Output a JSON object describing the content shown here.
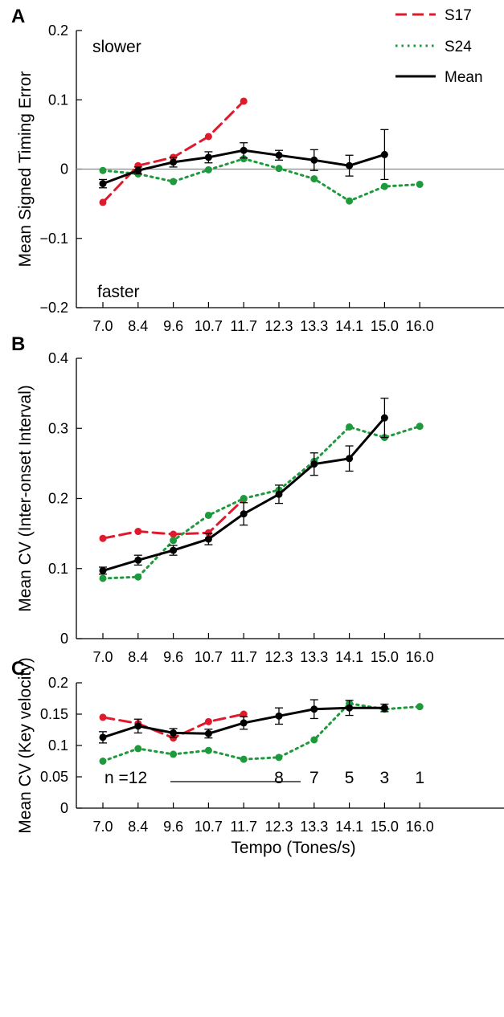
{
  "colors": {
    "S17": "#e0192d",
    "S24": "#1e9a3c",
    "Mean": "#000000",
    "zero_line": "#888888"
  },
  "legend": {
    "placement": "top-right",
    "entries": [
      {
        "key": "S17",
        "label": "S17",
        "style": "dashed"
      },
      {
        "key": "S24",
        "label": "S24",
        "style": "dotted"
      },
      {
        "key": "Mean",
        "label": "Mean",
        "style": "solid"
      }
    ]
  },
  "chart_data": [
    {
      "id": "A",
      "type": "line",
      "panel_label": "A",
      "ylabel": "Mean Signed Timing Error",
      "xlabel": "",
      "ylim": [
        -0.2,
        0.2
      ],
      "yticks": [
        "0.2",
        "0.1",
        "0",
        "−0.1",
        "−0.2"
      ],
      "ytick_values": [
        0.2,
        0.1,
        0,
        -0.1,
        -0.2
      ],
      "categories": [
        "7.0",
        "8.4",
        "9.6",
        "10.7",
        "11.7",
        "12.3",
        "13.3",
        "14.1",
        "15.0",
        "16.0"
      ],
      "zero_line": true,
      "annotations": {
        "top": "slower",
        "bottom": "faster"
      },
      "series": [
        {
          "name": "S17",
          "values": [
            -0.048,
            0.005,
            0.017,
            0.047,
            0.098,
            null,
            null,
            null,
            null,
            null
          ]
        },
        {
          "name": "S24",
          "values": [
            -0.002,
            -0.007,
            -0.018,
            -0.001,
            0.015,
            0.001,
            -0.014,
            -0.046,
            -0.025,
            -0.022
          ]
        },
        {
          "name": "Mean",
          "values": [
            -0.021,
            -0.002,
            0.01,
            0.017,
            0.027,
            0.02,
            0.013,
            0.005,
            0.021,
            null
          ],
          "errors": [
            0.006,
            0.005,
            0.007,
            0.008,
            0.011,
            0.007,
            0.015,
            0.015,
            0.036,
            null
          ]
        }
      ]
    },
    {
      "id": "B",
      "type": "line",
      "panel_label": "B",
      "ylabel": "Mean CV (Inter-onset Interval)",
      "xlabel": "",
      "ylim": [
        0,
        0.4
      ],
      "yticks": [
        "0.4",
        "0.3",
        "0.2",
        "0.1",
        "0"
      ],
      "ytick_values": [
        0.4,
        0.3,
        0.2,
        0.1,
        0
      ],
      "categories": [
        "7.0",
        "8.4",
        "9.6",
        "10.7",
        "11.7",
        "12.3",
        "13.3",
        "14.1",
        "15.0",
        "16.0"
      ],
      "series": [
        {
          "name": "S17",
          "values": [
            0.143,
            0.153,
            0.149,
            0.151,
            0.199,
            null,
            null,
            null,
            null,
            null
          ]
        },
        {
          "name": "S24",
          "values": [
            0.086,
            0.088,
            0.14,
            0.176,
            0.2,
            0.212,
            0.253,
            0.302,
            0.287,
            0.303
          ]
        },
        {
          "name": "Mean",
          "values": [
            0.097,
            0.112,
            0.126,
            0.142,
            0.178,
            0.206,
            0.249,
            0.257,
            0.315,
            null
          ],
          "errors": [
            0.005,
            0.007,
            0.007,
            0.008,
            0.016,
            0.013,
            0.016,
            0.018,
            0.028,
            null
          ]
        }
      ]
    },
    {
      "id": "C",
      "type": "line",
      "panel_label": "C",
      "ylabel": "Mean CV (Key velocity)",
      "xlabel": "Tempo (Tones/s)",
      "ylim": [
        0,
        0.2
      ],
      "yticks": [
        "0.2",
        "0.15",
        "0.1",
        "0.05",
        "0"
      ],
      "ytick_values": [
        0.2,
        0.15,
        0.1,
        0.05,
        0
      ],
      "categories": [
        "7.0",
        "8.4",
        "9.6",
        "10.7",
        "11.7",
        "12.3",
        "13.3",
        "14.1",
        "15.0",
        "16.0"
      ],
      "n_labels": {
        "prefix": "n =12",
        "values": [
          "8",
          "7",
          "5",
          "3",
          "1"
        ]
      },
      "series": [
        {
          "name": "S17",
          "values": [
            0.145,
            0.135,
            0.112,
            0.138,
            0.15,
            null,
            null,
            null,
            null,
            null
          ]
        },
        {
          "name": "S24",
          "values": [
            0.075,
            0.095,
            0.086,
            0.092,
            0.078,
            0.081,
            0.109,
            0.167,
            0.158,
            0.162
          ]
        },
        {
          "name": "Mean",
          "values": [
            0.113,
            0.131,
            0.12,
            0.119,
            0.136,
            0.147,
            0.158,
            0.16,
            0.16,
            null
          ],
          "errors": [
            0.009,
            0.011,
            0.007,
            0.007,
            0.01,
            0.013,
            0.015,
            0.012,
            0.006,
            null
          ]
        }
      ]
    }
  ]
}
